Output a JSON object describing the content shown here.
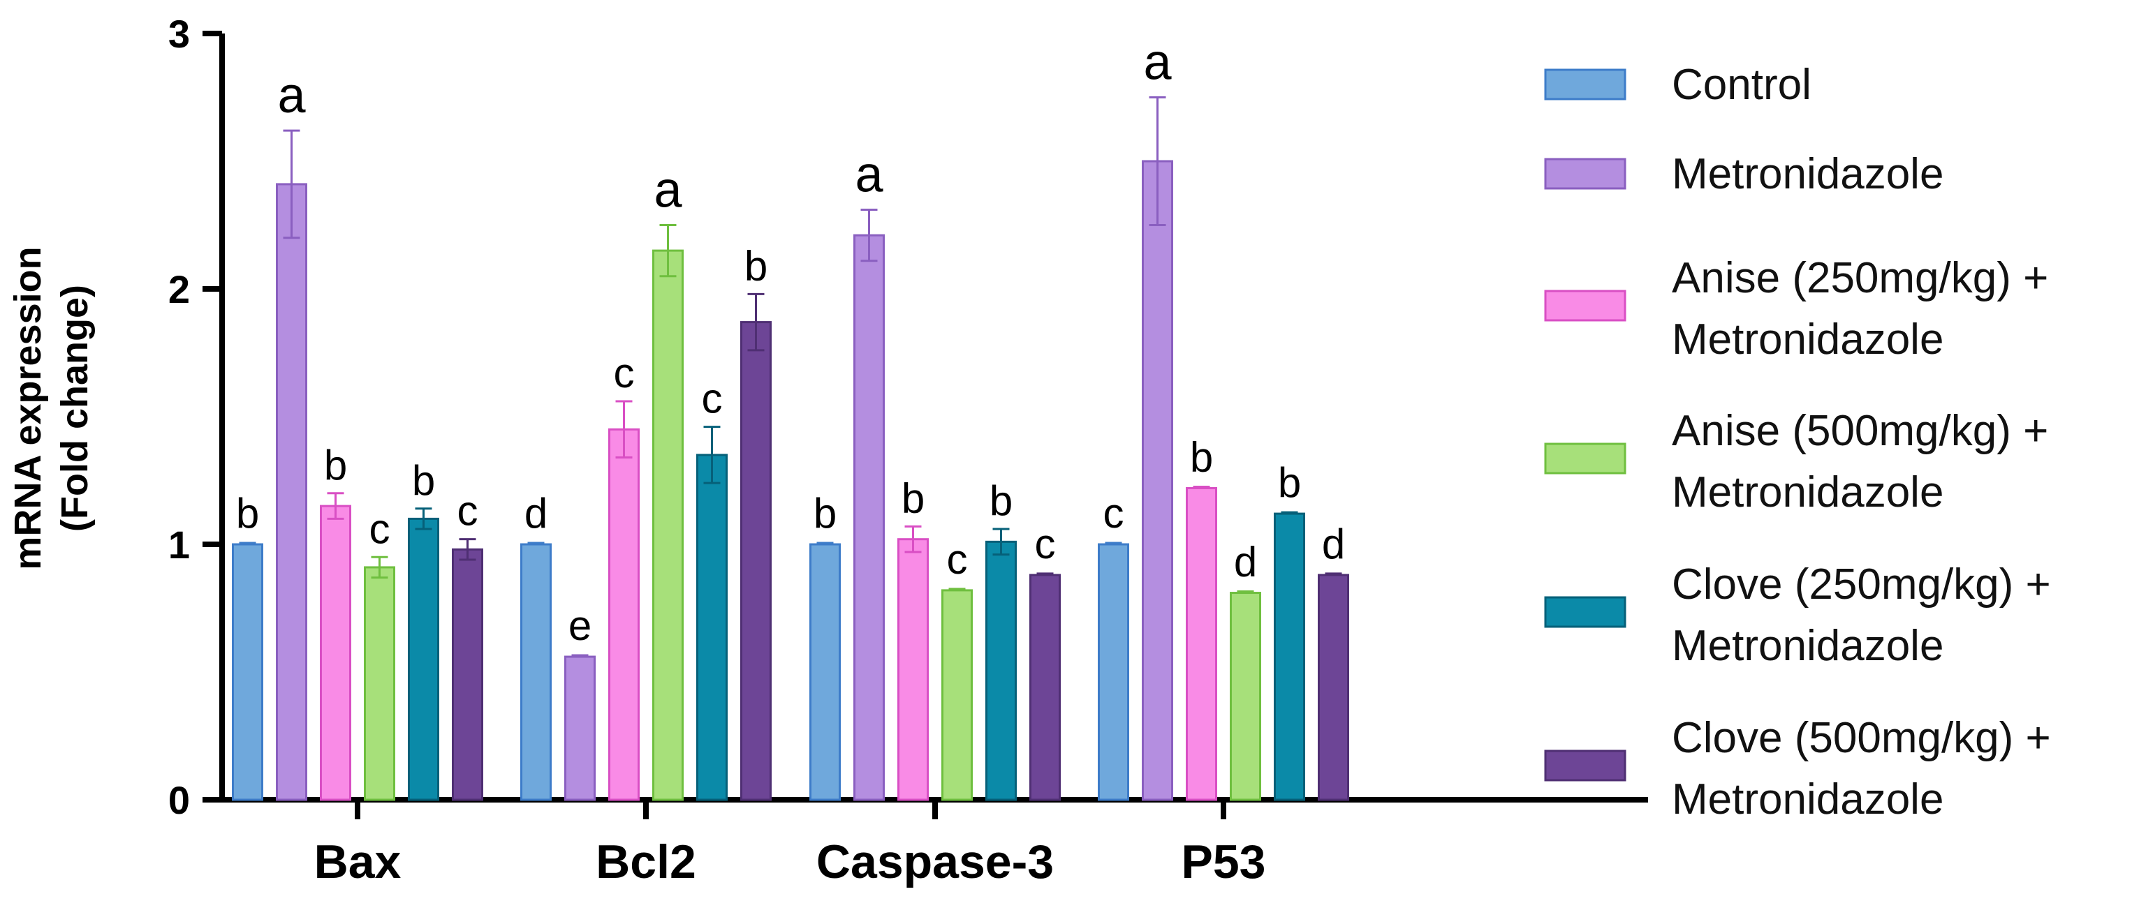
{
  "chart_data": {
    "type": "bar",
    "ylabel_line1": "mRNA expression",
    "ylabel_line2": "(Fold change)",
    "ylim": [
      0,
      3
    ],
    "yticks": [
      "0",
      "1",
      "2",
      "3"
    ],
    "categories": [
      "Bax",
      "Bcl2",
      "Caspase-3",
      "P53"
    ],
    "series": [
      {
        "name": "Control",
        "color": "#6fa8dc",
        "edge": "#3d7cc9",
        "values": [
          1.0,
          1.0,
          1.0,
          1.0
        ],
        "errors": [
          0.0,
          0.01,
          0.01,
          0.01
        ],
        "letters": [
          "b",
          "d",
          "b",
          "c"
        ]
      },
      {
        "name": "Metronidazole",
        "color": "#b48ee0",
        "edge": "#8a5fc0",
        "values": [
          2.41,
          0.56,
          2.21,
          2.5
        ],
        "errors": [
          0.21,
          0.01,
          0.1,
          0.25
        ],
        "letters": [
          "a",
          "e",
          "a",
          "a"
        ]
      },
      {
        "name": "Anise (250mg/kg) + Metronidazole",
        "color": "#f98be6",
        "edge": "#d94fc4",
        "values": [
          1.15,
          1.45,
          1.02,
          1.22
        ],
        "errors": [
          0.05,
          0.11,
          0.05,
          0.01
        ],
        "letters": [
          "b",
          "c",
          "b",
          "b"
        ]
      },
      {
        "name": "Anise (500mg/kg) + Metronidazole",
        "color": "#a7e07a",
        "edge": "#6fbf3f",
        "values": [
          0.91,
          2.15,
          0.82,
          0.81
        ],
        "errors": [
          0.04,
          0.1,
          0.01,
          0.01
        ],
        "letters": [
          "c",
          "a",
          "c",
          "d"
        ]
      },
      {
        "name": "Clove (250mg/kg) + Metronidazole",
        "color": "#0b8aa8",
        "edge": "#066079",
        "values": [
          1.1,
          1.35,
          1.01,
          1.12
        ],
        "errors": [
          0.04,
          0.11,
          0.05,
          0.01
        ],
        "letters": [
          "b",
          "c",
          "b",
          "b"
        ]
      },
      {
        "name": "Clove (500mg/kg) + Metronidazole",
        "color": "#6d4596",
        "edge": "#4f2f73",
        "values": [
          0.98,
          1.87,
          0.88,
          0.88
        ],
        "errors": [
          0.04,
          0.11,
          0.01,
          0.01
        ],
        "letters": [
          "c",
          "b",
          "c",
          "d"
        ]
      }
    ],
    "legend": [
      {
        "line1": "Control",
        "line2": ""
      },
      {
        "line1": "Metronidazole",
        "line2": ""
      },
      {
        "line1": "Anise (250mg/kg) +",
        "line2": "Metronidazole"
      },
      {
        "line1": "Anise (500mg/kg) +",
        "line2": "Metronidazole"
      },
      {
        "line1": "Clove (250mg/kg) +",
        "line2": "Metronidazole"
      },
      {
        "line1": "Clove (500mg/kg) +",
        "line2": "Metronidazole"
      }
    ]
  }
}
